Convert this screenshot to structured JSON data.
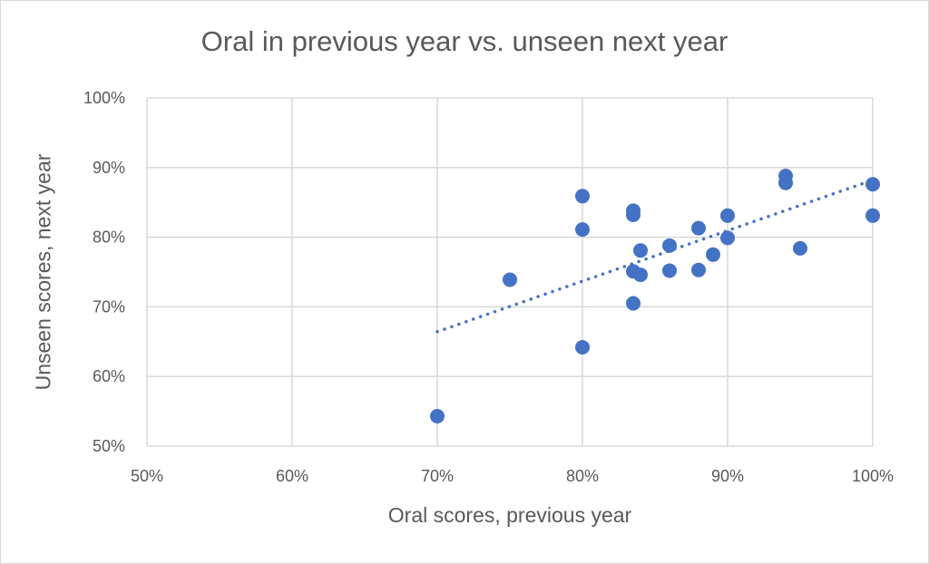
{
  "chart_data": {
    "type": "scatter",
    "title": "Oral in previous year vs. unseen next year",
    "xlabel": "Oral scores, previous year",
    "ylabel": "Unseen scores, next year",
    "xlim": [
      50,
      100
    ],
    "ylim": [
      50,
      100
    ],
    "xticks": [
      "50%",
      "60%",
      "70%",
      "80%",
      "90%",
      "100%"
    ],
    "yticks": [
      "50%",
      "60%",
      "70%",
      "80%",
      "90%",
      "100%"
    ],
    "grid": true,
    "trendline": "linear (dotted)",
    "color": "#4472c4",
    "points": [
      [
        70,
        54.3
      ],
      [
        75,
        73.9
      ],
      [
        80,
        85.9
      ],
      [
        80,
        81.1
      ],
      [
        80,
        64.2
      ],
      [
        83.5,
        83.8
      ],
      [
        83.5,
        83.2
      ],
      [
        84,
        78.1
      ],
      [
        83.5,
        75.1
      ],
      [
        84,
        74.6
      ],
      [
        83.5,
        70.5
      ],
      [
        86,
        78.8
      ],
      [
        86,
        75.2
      ],
      [
        88,
        81.3
      ],
      [
        88,
        75.3
      ],
      [
        89,
        77.5
      ],
      [
        90,
        83.1
      ],
      [
        90,
        79.9
      ],
      [
        94,
        88.8
      ],
      [
        94,
        87.8
      ],
      [
        95,
        78.4
      ],
      [
        100,
        87.6
      ],
      [
        100,
        83.1
      ]
    ]
  }
}
